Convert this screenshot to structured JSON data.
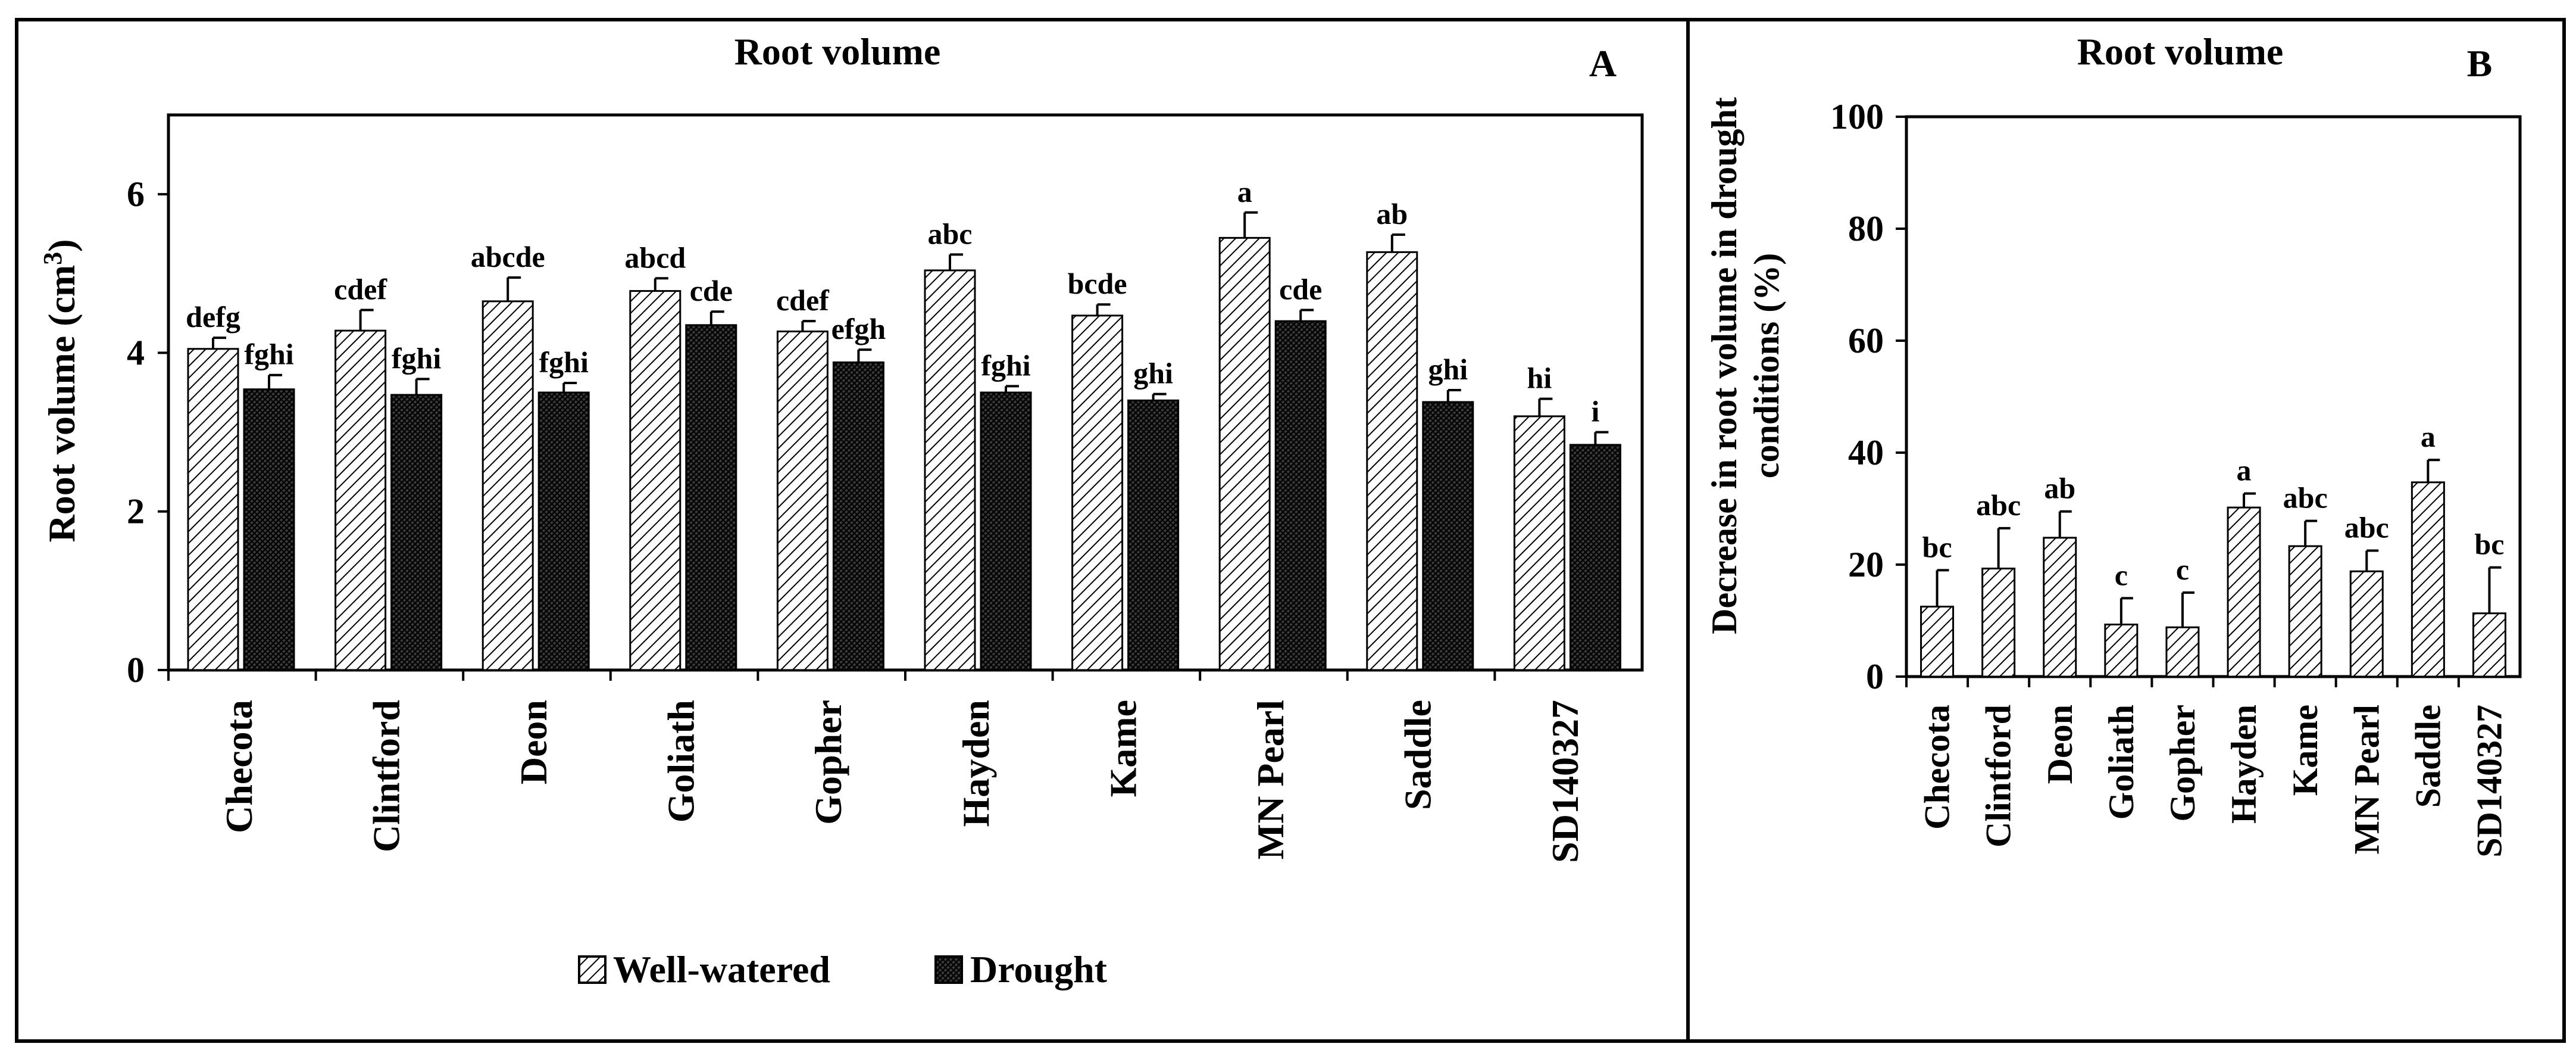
{
  "panels": [
    {
      "title": "Root volume",
      "letter": "A",
      "ylabel": "Root volume (cm",
      "ylabel_sup": "3",
      "ylabel_end": ")",
      "legend": [
        "Well-watered",
        "Drought"
      ]
    },
    {
      "title": "Root volume",
      "letter": "B",
      "ylabel_line1": "Decrease in root volume in drought",
      "ylabel_line2": "conditions (%)"
    }
  ],
  "chart_data": [
    {
      "type": "bar",
      "title": "Root volume",
      "ylabel": "Root volume (cm3)",
      "ylim": [
        0,
        7
      ],
      "yticks": [
        0,
        2,
        4,
        6
      ],
      "grid": false,
      "legend_position": "bottom",
      "categories": [
        "Checota",
        "Clintford",
        "Deon",
        "Goliath",
        "Gopher",
        "Hayden",
        "Kame",
        "MN Pearl",
        "Saddle",
        "SD140327"
      ],
      "series": [
        {
          "name": "Well-watered",
          "values": [
            4.05,
            4.28,
            4.65,
            4.78,
            4.27,
            5.04,
            4.47,
            5.45,
            5.27,
            3.2
          ],
          "errors": [
            0.14,
            0.26,
            0.3,
            0.16,
            0.13,
            0.2,
            0.14,
            0.32,
            0.22,
            0.22
          ],
          "labels": [
            "defg",
            "cdef",
            "abcde",
            "abcd",
            "cdef",
            "abc",
            "bcde",
            "a",
            "ab",
            "hi"
          ]
        },
        {
          "name": "Drought",
          "values": [
            3.54,
            3.47,
            3.5,
            4.35,
            3.88,
            3.5,
            3.4,
            4.4,
            3.38,
            2.84
          ],
          "errors": [
            0.18,
            0.2,
            0.12,
            0.17,
            0.16,
            0.08,
            0.08,
            0.14,
            0.15,
            0.16
          ],
          "labels": [
            "fghi",
            "fghi",
            "fghi",
            "cde",
            "efgh",
            "fghi",
            "ghi",
            "cde",
            "ghi",
            "i"
          ]
        }
      ]
    },
    {
      "type": "bar",
      "title": "Root volume",
      "ylabel": "Decrease in root volume in drought conditions (%)",
      "ylim": [
        0,
        100
      ],
      "yticks": [
        0,
        20,
        40,
        60,
        80,
        100
      ],
      "grid": false,
      "categories": [
        "Checota",
        "Clintford",
        "Deon",
        "Goliath",
        "Gopher",
        "Hayden",
        "Kame",
        "MN Pearl",
        "Saddle",
        "SD140327"
      ],
      "series": [
        {
          "values": [
            12.5,
            19.3,
            24.8,
            9.3,
            8.8,
            30.2,
            23.3,
            18.8,
            34.7,
            11.3
          ],
          "errors": [
            6.5,
            7.2,
            4.7,
            4.7,
            6.2,
            2.5,
            4.5,
            3.7,
            4.0,
            8.2
          ],
          "labels": [
            "bc",
            "abc",
            "ab",
            "c",
            "c",
            "a",
            "abc",
            "abc",
            "a",
            "bc"
          ]
        }
      ]
    }
  ]
}
